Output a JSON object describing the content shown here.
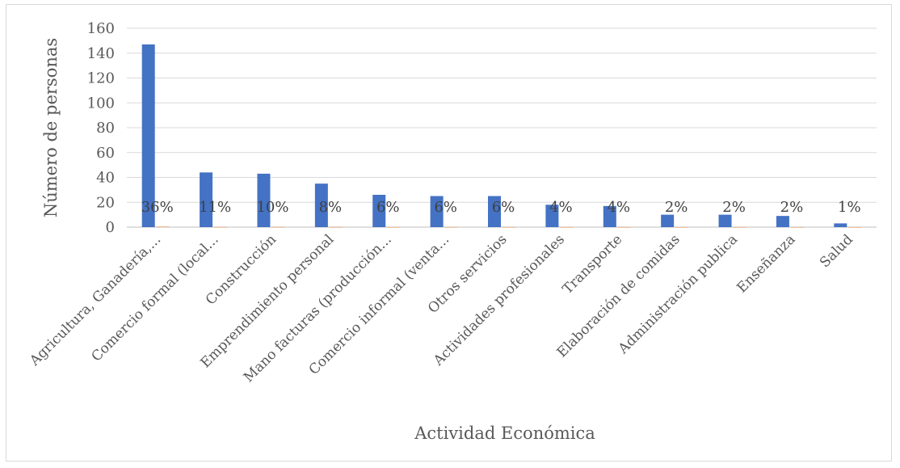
{
  "chart_data": {
    "type": "bar",
    "title": "",
    "xlabel": "Actividad Económica",
    "ylabel": "Número de personas",
    "ylim": [
      0,
      160
    ],
    "yticks": [
      0,
      20,
      40,
      60,
      80,
      100,
      120,
      140,
      160
    ],
    "grid": true,
    "legend": "none",
    "colors": {
      "primary": "#4472c4",
      "secondary": "#ed7d31"
    },
    "categories": [
      "Agricultura, Ganadería,...",
      "Comercio formal (local...",
      "Construcción",
      "Emprendimiento personal",
      "Mano facturas (producción...",
      "Comercio informal (venta...",
      "Otros servicios",
      "Actividades profesionales",
      "Transporte",
      "Elaboración de comidas",
      "Administración publica",
      "Enseñanza",
      "Salud"
    ],
    "series": [
      {
        "values": [
          147,
          44,
          43,
          35,
          26,
          25,
          25,
          18,
          17,
          10,
          10,
          9,
          3
        ]
      },
      {
        "values": [
          0.36,
          0.11,
          0.1,
          0.08,
          0.06,
          0.06,
          0.06,
          0.04,
          0.04,
          0.02,
          0.02,
          0.02,
          0.01
        ]
      }
    ],
    "data_labels": [
      "36%",
      "11%",
      "10%",
      "8%",
      "6%",
      "6%",
      "6%",
      "4%",
      "4%",
      "2%",
      "2%",
      "2%",
      "1%"
    ]
  }
}
